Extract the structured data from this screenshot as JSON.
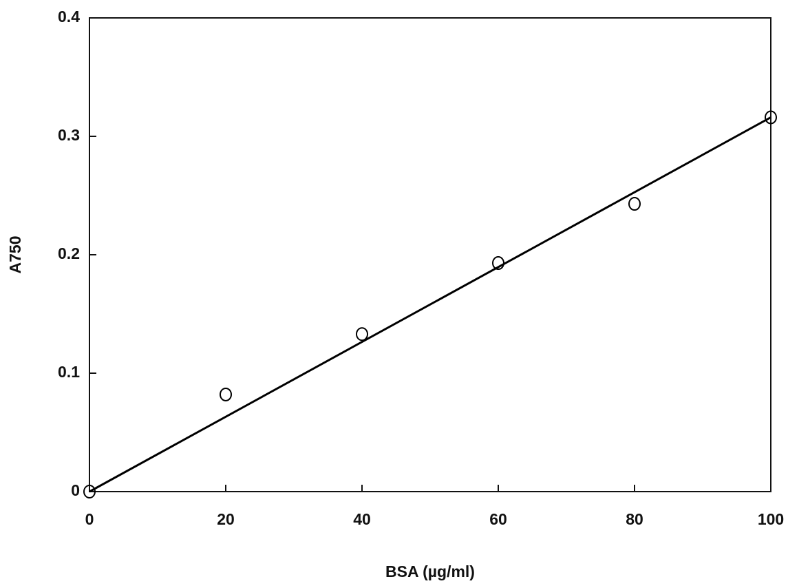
{
  "chart_data": {
    "type": "scatter",
    "x_label": "BSA (µg/ml)",
    "y_label": "A750",
    "xlim": [
      0,
      100
    ],
    "xticks": [
      0,
      20,
      40,
      60,
      80,
      100
    ],
    "ylim": [
      0,
      0.4
    ],
    "yticks": [
      0,
      0.1,
      0.2,
      0.3,
      0.4
    ],
    "grid": false,
    "series": [
      {
        "type": "scatter",
        "color": "#000000",
        "x": [
          0,
          20,
          40,
          60,
          80,
          100
        ],
        "values": [
          0,
          0.082,
          0.133,
          0.193,
          0.243,
          0.316
        ]
      },
      {
        "type": "line",
        "color": "#000000",
        "x": [
          0,
          100
        ],
        "values": [
          0,
          0.316
        ]
      }
    ]
  }
}
